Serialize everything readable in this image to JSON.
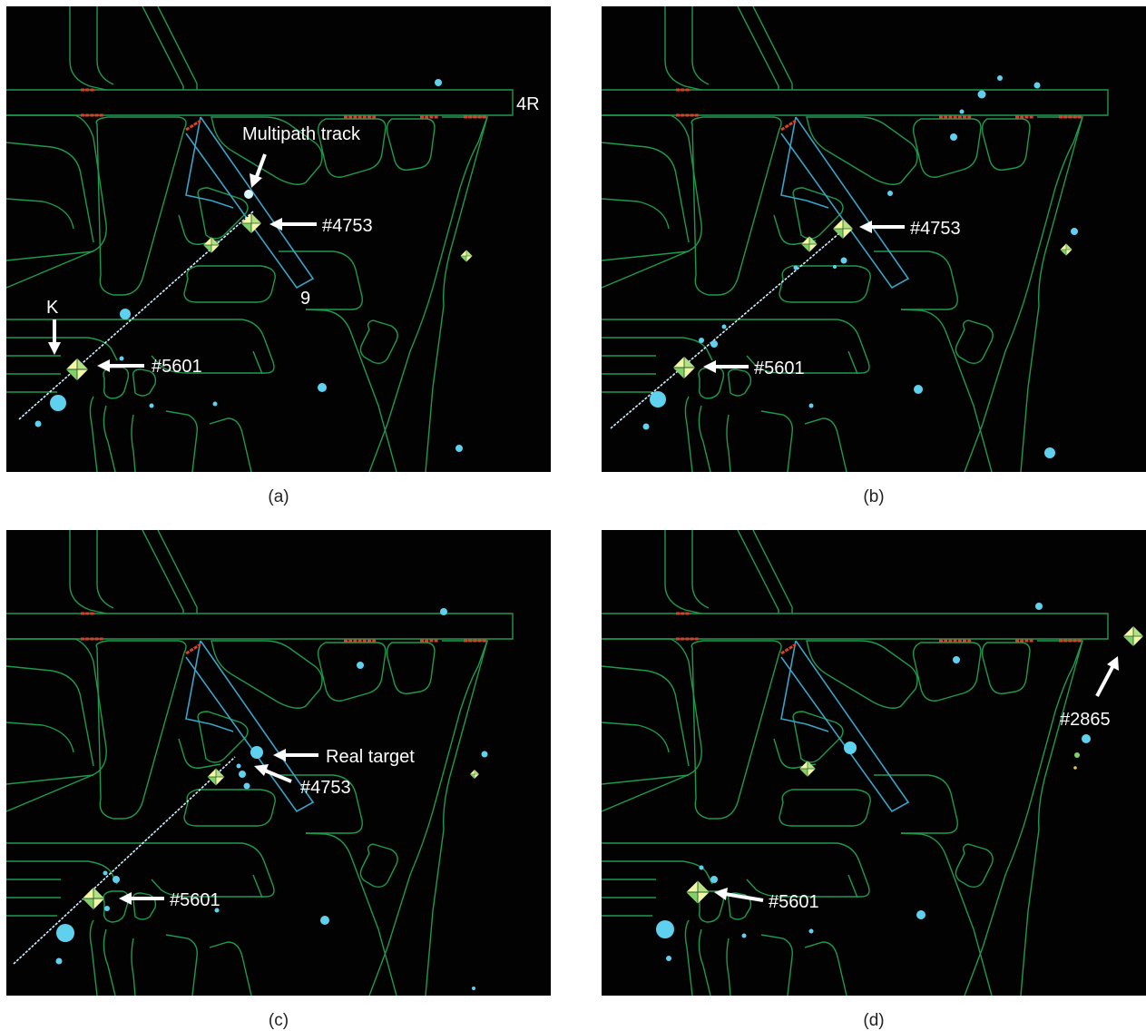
{
  "panels": [
    {
      "caption": "(a)",
      "labels": {
        "runway_4r": "4R",
        "runway_9": "9",
        "taxiway_k": "K",
        "multipath": "Multipath track",
        "target_4753": "#4753",
        "target_5601": "#5601"
      }
    },
    {
      "caption": "(b)",
      "labels": {
        "target_4753": "#4753",
        "target_5601": "#5601"
      }
    },
    {
      "caption": "(c)",
      "labels": {
        "real_target": "Real target",
        "target_4753": "#4753",
        "target_5601": "#5601"
      }
    },
    {
      "caption": "(d)",
      "labels": {
        "target_2865": "#2865",
        "target_5601": "#5601"
      }
    }
  ],
  "colors": {
    "background": "#020202",
    "airport_outline": "#1f9a4d",
    "runway_9_outline": "#3aa3c8",
    "hold_bars": "#d8402a",
    "radar_returns": "#5fd0ee",
    "aircraft_symbol": "#f1f7a2"
  }
}
